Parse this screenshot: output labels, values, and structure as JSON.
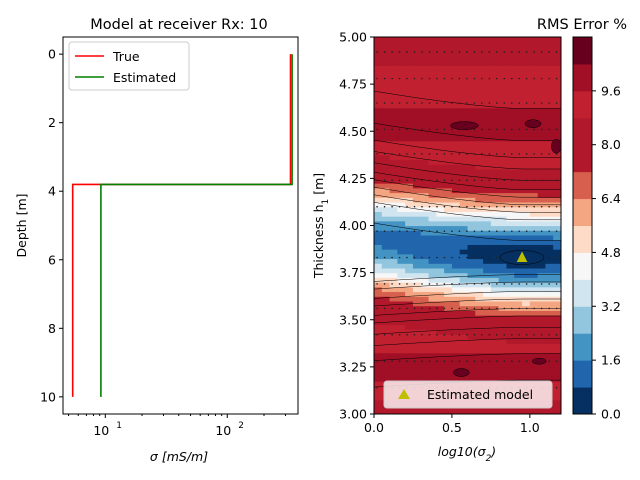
{
  "chart_data": [
    {
      "type": "line",
      "title": "Model at receiver Rx: 10",
      "xlabel": "σ [mS/m]",
      "ylabel": "Depth [m]",
      "xscale": "log",
      "xlim": [
        4.5,
        380
      ],
      "ylim": [
        10.5,
        -0.5
      ],
      "xticks": [
        {
          "value": 10,
          "base": "10",
          "exp": "1"
        },
        {
          "value": 100,
          "base": "10",
          "exp": "2"
        }
      ],
      "yticks": [
        0,
        2,
        4,
        6,
        8,
        10
      ],
      "legend": "upper-left",
      "series": [
        {
          "name": "True",
          "color": "#ff0000",
          "points": [
            [
              330,
              0
            ],
            [
              330,
              3.8
            ],
            [
              5.4,
              3.8
            ],
            [
              5.4,
              10
            ]
          ]
        },
        {
          "name": "Estimated",
          "color": "#008000",
          "points": [
            [
              340,
              0
            ],
            [
              340,
              3.8
            ],
            [
              9.2,
              3.8
            ],
            [
              9.2,
              10
            ]
          ]
        }
      ]
    },
    {
      "type": "heatmap",
      "title": "RMS Error %",
      "xlabel": "log10(σ2)",
      "ylabel": "Thickness h1 [m]",
      "xlim": [
        0.0,
        1.2
      ],
      "ylim": [
        3.0,
        5.0
      ],
      "xticks": [
        "0.0",
        "0.5",
        "1.0"
      ],
      "yticks": [
        "3.00",
        "3.25",
        "3.50",
        "3.75",
        "4.00",
        "4.25",
        "4.50",
        "4.75",
        "5.00"
      ],
      "colorbar": {
        "min": 0.0,
        "max": 11.2,
        "ticks": [
          "0.0",
          "1.6",
          "3.2",
          "4.8",
          "6.4",
          "8.0",
          "9.6"
        ]
      },
      "contour_levels": [
        0.0,
        0.8,
        1.6,
        2.4,
        3.2,
        4.0,
        4.8,
        5.6,
        6.4,
        7.2,
        8.0,
        8.8,
        9.6,
        10.4,
        11.2
      ],
      "colors": [
        "#053061",
        "#2166ac",
        "#4393c3",
        "#92c5de",
        "#d1e5f0",
        "#f7f7f7",
        "#fddbc7",
        "#f4a582",
        "#d6604d",
        "#b2182b",
        "#b2182b",
        "#c02030",
        "#a00f26",
        "#67001f"
      ],
      "minimum": {
        "x": 0.95,
        "y": 3.83
      },
      "legend": [
        {
          "label": "Estimated model",
          "marker": "triangle",
          "color": "#bfbf00"
        }
      ]
    }
  ]
}
